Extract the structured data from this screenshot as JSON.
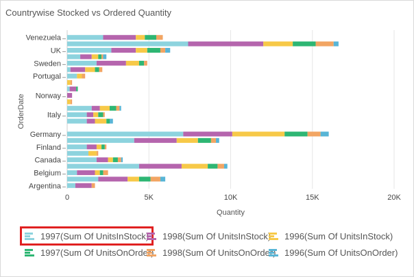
{
  "title": "Countrywise Stocked vs Ordered Quantity",
  "chart_data": {
    "type": "bar",
    "orientation": "horizontal",
    "stacked": true,
    "title": "Countrywise Stocked vs Ordered Quantity",
    "xlabel": "Quantity",
    "ylabel": "OrderDate",
    "xlim": [
      0,
      20000
    ],
    "x_ticks": [
      "0",
      "5K",
      "10K",
      "15K",
      "20K"
    ],
    "x_tick_values": [
      0,
      5000,
      10000,
      15000,
      20000
    ],
    "grid": true,
    "legend_position": "bottom",
    "rows": [
      {
        "label": "Venezuela",
        "values": [
          2200,
          2000,
          550,
          700,
          400,
          0
        ]
      },
      {
        "label": "",
        "values": [
          7400,
          4600,
          1800,
          1400,
          1100,
          300
        ]
      },
      {
        "label": "UK",
        "values": [
          2700,
          1500,
          700,
          800,
          300,
          300
        ]
      },
      {
        "label": "",
        "values": [
          800,
          700,
          400,
          200,
          100,
          200
        ]
      },
      {
        "label": "Sweden",
        "values": [
          1800,
          1800,
          800,
          300,
          200,
          0
        ]
      },
      {
        "label": "",
        "values": [
          200,
          900,
          600,
          250,
          200,
          0
        ]
      },
      {
        "label": "Portugal",
        "values": [
          600,
          0,
          300,
          0,
          200,
          0
        ]
      },
      {
        "label": "",
        "values": [
          0,
          0,
          200,
          0,
          100,
          0
        ]
      },
      {
        "label": "",
        "values": [
          150,
          400,
          0,
          100,
          0,
          0
        ]
      },
      {
        "label": "Norway",
        "values": [
          0,
          300,
          0,
          0,
          0,
          0
        ]
      },
      {
        "label": "",
        "values": [
          0,
          0,
          200,
          0,
          100,
          0
        ]
      },
      {
        "label": "",
        "values": [
          1500,
          500,
          600,
          400,
          200,
          100
        ]
      },
      {
        "label": "Italy",
        "values": [
          1200,
          400,
          300,
          300,
          100,
          0
        ]
      },
      {
        "label": "",
        "values": [
          1200,
          500,
          700,
          200,
          0,
          200
        ]
      },
      {
        "label": "",
        "values": [
          0,
          0,
          0,
          0,
          0,
          0
        ]
      },
      {
        "label": "Germany",
        "values": [
          7100,
          3000,
          3200,
          1400,
          800,
          500
        ]
      },
      {
        "label": "",
        "values": [
          4100,
          2600,
          1300,
          800,
          300,
          200
        ]
      },
      {
        "label": "Finland",
        "values": [
          1200,
          600,
          300,
          200,
          100,
          0
        ]
      },
      {
        "label": "",
        "values": [
          1300,
          0,
          500,
          0,
          100,
          0
        ]
      },
      {
        "label": "Canada",
        "values": [
          1800,
          700,
          300,
          300,
          200,
          100
        ]
      },
      {
        "label": "",
        "values": [
          4400,
          2600,
          1600,
          600,
          400,
          200
        ]
      },
      {
        "label": "Belgium",
        "values": [
          600,
          1100,
          300,
          200,
          300,
          0
        ]
      },
      {
        "label": "",
        "values": [
          1900,
          1800,
          700,
          700,
          600,
          300
        ]
      },
      {
        "label": "Argentina",
        "values": [
          500,
          1000,
          0,
          0,
          200,
          0
        ]
      }
    ],
    "series": [
      {
        "name": "1997(Sum Of UnitsInStock)",
        "color": "#8dd3de",
        "selected": true
      },
      {
        "name": "1998(Sum Of UnitsInStock)",
        "color": "#b565ad"
      },
      {
        "name": "1996(Sum Of UnitsInStock)",
        "color": "#f7c948"
      },
      {
        "name": "1997(Sum Of UnitsOnOrder)",
        "color": "#2eb673"
      },
      {
        "name": "1998(Sum Of UnitsOnOrder)",
        "color": "#f2a563"
      },
      {
        "name": "1996(Sum Of UnitsOnOrder)",
        "color": "#58b5d6"
      }
    ]
  }
}
